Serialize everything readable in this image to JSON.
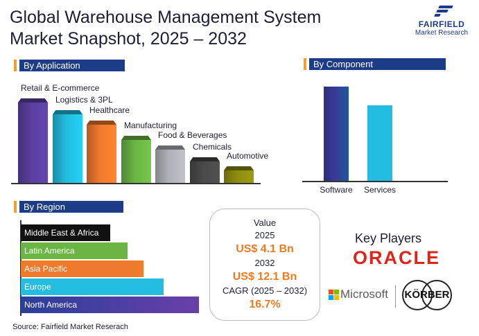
{
  "title": {
    "line1": "Global Warehouse Management System",
    "line2": "Market Snapshot, 2025 – 2032"
  },
  "logo": {
    "name": "FAIRFIELD",
    "sub": "Market Research",
    "icon": "fairfield-stripes-icon"
  },
  "application": {
    "heading": "By Application",
    "items": [
      {
        "label": "Retail & E-commerce",
        "color": "#5b3fa0",
        "value": 5
      },
      {
        "label": "Logistics & 3PL",
        "color": "#22bde0",
        "value": 4.3
      },
      {
        "label": "Healthcare",
        "color": "#f07a2c",
        "value": 3.7
      },
      {
        "label": "Manufacturing",
        "color": "#6ab544",
        "value": 2.8
      },
      {
        "label": "Food & Beverages",
        "color": "#b0b0b8",
        "value": 2.2
      },
      {
        "label": "Chemicals",
        "color": "#4a4a4a",
        "value": 1.5
      },
      {
        "label": "Automotive",
        "color": "#8e8e10",
        "value": 1
      }
    ]
  },
  "component": {
    "heading": "By Component",
    "items": [
      {
        "label": "Software",
        "color": "#3a3898",
        "value": 10
      },
      {
        "label": "Services",
        "color": "#22bde0",
        "value": 8
      }
    ]
  },
  "region": {
    "heading": "By Region",
    "items": [
      {
        "label": "Middle East & Africa",
        "color": "#111111",
        "value": 1
      },
      {
        "label": "Latin America",
        "color": "#6ab544",
        "value": 1.2
      },
      {
        "label": "Asia Pacific",
        "color": "#f07a2c",
        "value": 1.38
      },
      {
        "label": "Europe",
        "color": "#22bde0",
        "value": 1.6
      },
      {
        "label": "North America",
        "color": "#6a3fa8",
        "value": 2
      }
    ]
  },
  "value_box": {
    "label": "Value",
    "year1": "2025",
    "value1": "US$ 4.1 Bn",
    "year2": "2032",
    "value2": "US$ 12.1 Bn",
    "cagr_label": "CAGR (2025 – 2032)",
    "cagr_value": "16.7%"
  },
  "key_players": {
    "heading": "Key Players",
    "oracle": "ORACLE",
    "microsoft": "Microsoft",
    "korber": "KÖRBER"
  },
  "source": "Source: Fairfield Market Reserach"
}
